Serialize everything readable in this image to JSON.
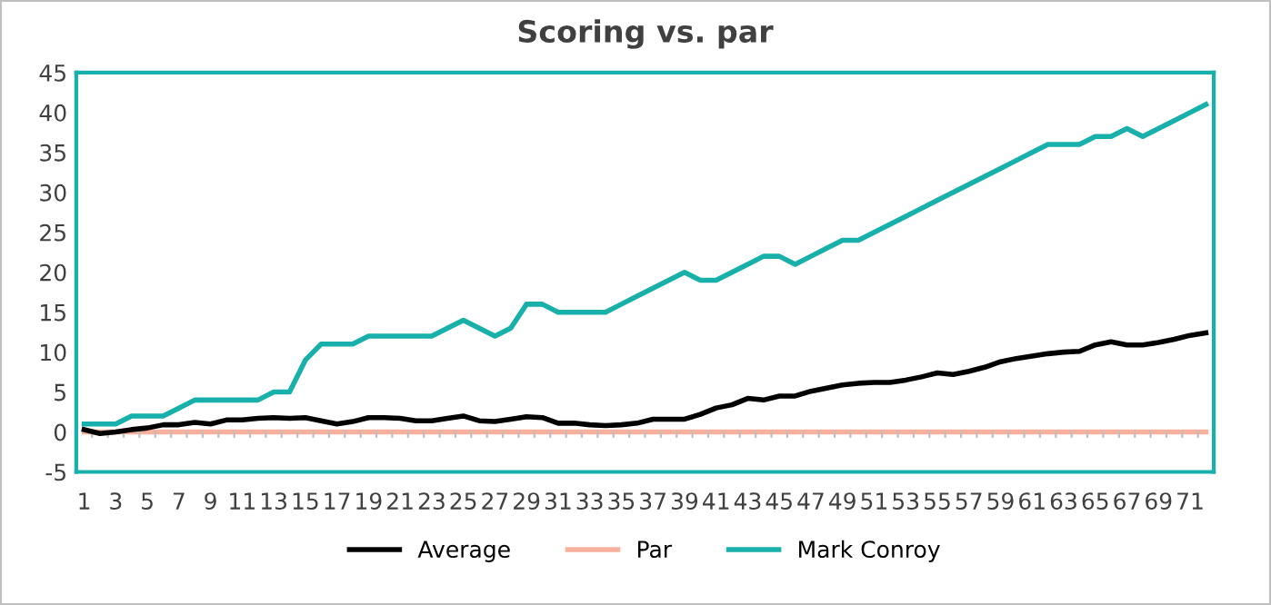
{
  "chart_data": {
    "type": "line",
    "title": "Scoring vs. par",
    "categories": [
      "1",
      null,
      "3",
      null,
      "5",
      null,
      "7",
      null,
      "9",
      null,
      "11",
      null,
      "13",
      null,
      "15",
      null,
      "17",
      null,
      "19",
      null,
      "21",
      null,
      "23",
      null,
      "25",
      null,
      "27",
      null,
      "29",
      null,
      "31",
      null,
      "33",
      null,
      "35",
      null,
      "37",
      null,
      "39",
      null,
      "41",
      null,
      "43",
      null,
      "45",
      null,
      "47",
      null,
      "49",
      null,
      "51",
      null,
      "53",
      null,
      "55",
      null,
      "57",
      null,
      "59",
      null,
      "61",
      null,
      "63",
      null,
      "65",
      null,
      "67",
      null,
      "69",
      null,
      "71",
      null
    ],
    "series": [
      {
        "name": "Average",
        "color": "#000000",
        "values": [
          0.3,
          -0.2,
          0,
          0.3,
          0.5,
          0.9,
          0.9,
          1.2,
          1.0,
          1.5,
          1.5,
          1.7,
          1.8,
          1.7,
          1.8,
          1.4,
          1.0,
          1.3,
          1.8,
          1.8,
          1.7,
          1.4,
          1.4,
          1.7,
          2.0,
          1.4,
          1.3,
          1.6,
          1.9,
          1.8,
          1.1,
          1.1,
          0.9,
          0.8,
          0.9,
          1.1,
          1.6,
          1.6,
          1.6,
          2.2,
          3.0,
          3.4,
          4.2,
          4.0,
          4.5,
          4.5,
          5.1,
          5.5,
          5.9,
          6.1,
          6.2,
          6.2,
          6.5,
          6.9,
          7.4,
          7.2,
          7.6,
          8.1,
          8.8,
          9.2,
          9.5,
          9.8,
          10.0,
          10.1,
          10.9,
          11.3,
          10.9,
          10.9,
          11.2,
          11.6,
          12.1,
          12.4
        ]
      },
      {
        "name": "Par",
        "color": "#f7b09c",
        "values": [
          0,
          0,
          0,
          0,
          0,
          0,
          0,
          0,
          0,
          0,
          0,
          0,
          0,
          0,
          0,
          0,
          0,
          0,
          0,
          0,
          0,
          0,
          0,
          0,
          0,
          0,
          0,
          0,
          0,
          0,
          0,
          0,
          0,
          0,
          0,
          0,
          0,
          0,
          0,
          0,
          0,
          0,
          0,
          0,
          0,
          0,
          0,
          0,
          0,
          0,
          0,
          0,
          0,
          0,
          0,
          0,
          0,
          0,
          0,
          0,
          0,
          0,
          0,
          0,
          0,
          0,
          0,
          0,
          0,
          0,
          0,
          0
        ]
      },
      {
        "name": "Mark Conroy",
        "color": "#17b0aa",
        "values": [
          1,
          1,
          1,
          2,
          2,
          2,
          3,
          4,
          4,
          4,
          4,
          4,
          5,
          5,
          9,
          11,
          11,
          11,
          12,
          12,
          12,
          12,
          12,
          13,
          14,
          13,
          12,
          13,
          16,
          16,
          15,
          15,
          15,
          15,
          16,
          17,
          18,
          19,
          20,
          19,
          19,
          20,
          21,
          22,
          22,
          21,
          22,
          23,
          24,
          24,
          25,
          26,
          27,
          28,
          29,
          30,
          31,
          32,
          33,
          34,
          35,
          36,
          36,
          36,
          37,
          37,
          38,
          37,
          38,
          39,
          40,
          41
        ]
      }
    ],
    "ylim": [
      -5,
      45
    ],
    "yticks": [
      -5,
      0,
      5,
      10,
      15,
      20,
      25,
      30,
      35,
      40,
      45
    ],
    "grid": false,
    "legend": "bottom",
    "marker": "none",
    "line_style": "solid"
  }
}
